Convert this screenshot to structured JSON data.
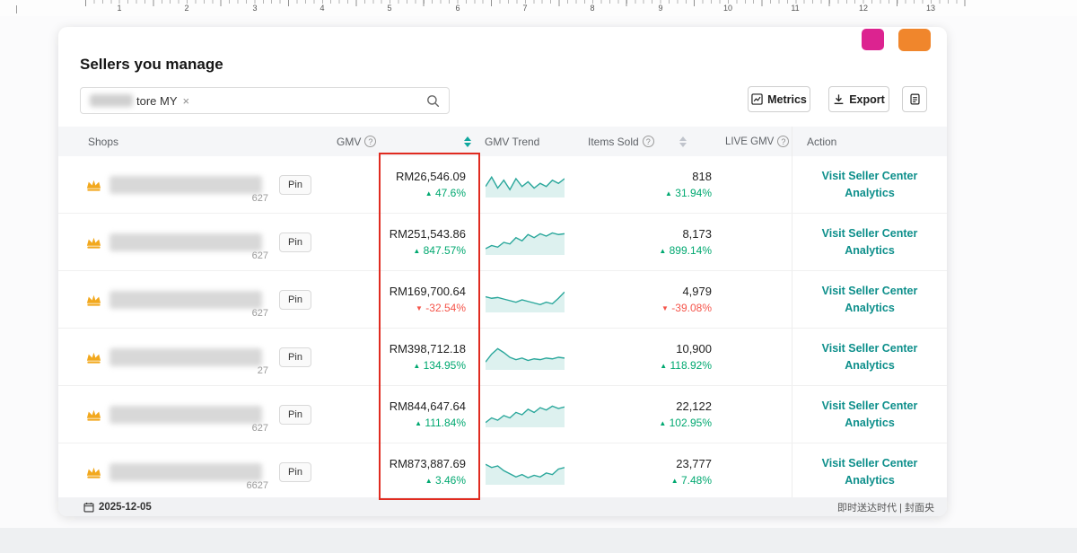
{
  "ruler": {
    "numbers": [
      "1",
      "2",
      "3",
      "4",
      "5",
      "6",
      "7",
      "8",
      "9",
      "10",
      "11",
      "12",
      "13"
    ]
  },
  "header": {
    "title": "Sellers you manage"
  },
  "search": {
    "tag_text": "tore MY",
    "close": "×"
  },
  "toolbar": {
    "metrics_label": "Metrics",
    "export_label": "Export"
  },
  "table": {
    "columns": {
      "shops": "Shops",
      "gmv": "GMV",
      "gmv_trend": "GMV Trend",
      "items_sold": "Items Sold",
      "live_gmv": "LIVE GMV",
      "action": "Action"
    },
    "pin_label": "Pin",
    "action_label": "Visit Seller Center Analytics",
    "rows": [
      {
        "name_suffix": "627",
        "gmv": "RM26,546.09",
        "gmv_change": "47.6%",
        "gmv_dir": "up",
        "items": "818",
        "items_change": "31.94%",
        "items_dir": "up",
        "trend": [
          18,
          6,
          20,
          10,
          22,
          8,
          18,
          12,
          20,
          14,
          18,
          10,
          14,
          8
        ]
      },
      {
        "name_suffix": "627",
        "gmv": "RM251,543.86",
        "gmv_change": "847.57%",
        "gmv_dir": "up",
        "items": "8,173",
        "items_change": "899.14%",
        "items_dir": "up",
        "trend": [
          24,
          20,
          22,
          16,
          18,
          10,
          14,
          6,
          10,
          5,
          8,
          4,
          6,
          5
        ]
      },
      {
        "name_suffix": "627",
        "gmv": "RM169,700.64",
        "gmv_change": "-32.54%",
        "gmv_dir": "down",
        "items": "4,979",
        "items_change": "-39.08%",
        "items_dir": "down",
        "trend": [
          12,
          14,
          13,
          15,
          17,
          19,
          16,
          18,
          20,
          22,
          19,
          21,
          14,
          6
        ]
      },
      {
        "name_suffix": "27",
        "gmv": "RM398,712.18",
        "gmv_change": "134.95%",
        "gmv_dir": "up",
        "items": "10,900",
        "items_change": "118.92%",
        "items_dir": "up",
        "trend": [
          22,
          12,
          5,
          10,
          16,
          19,
          17,
          20,
          18,
          19,
          17,
          18,
          16,
          17
        ]
      },
      {
        "name_suffix": "627",
        "gmv": "RM844,647.64",
        "gmv_change": "111.84%",
        "gmv_dir": "up",
        "items": "22,122",
        "items_change": "102.95%",
        "items_dir": "up",
        "trend": [
          26,
          20,
          23,
          17,
          20,
          13,
          16,
          9,
          13,
          7,
          10,
          5,
          8,
          6
        ]
      },
      {
        "name_suffix": "6627",
        "gmv": "RM873,887.69",
        "gmv_change": "3.46%",
        "gmv_dir": "up",
        "items": "23,777",
        "items_change": "7.48%",
        "items_dir": "up",
        "trend": [
          6,
          10,
          8,
          14,
          18,
          22,
          19,
          23,
          20,
          22,
          17,
          19,
          12,
          10
        ]
      }
    ]
  },
  "footer": {
    "date": "2025-12-05",
    "right_text": "即时送达时代 | 封面央"
  },
  "colors": {
    "positive": "#00a870",
    "negative": "#f5554b",
    "link": "#0d8f8b",
    "highlight": "#e02b20",
    "spark": "#2aa79b",
    "spark_fill": "rgba(42,167,155,0.16)"
  }
}
